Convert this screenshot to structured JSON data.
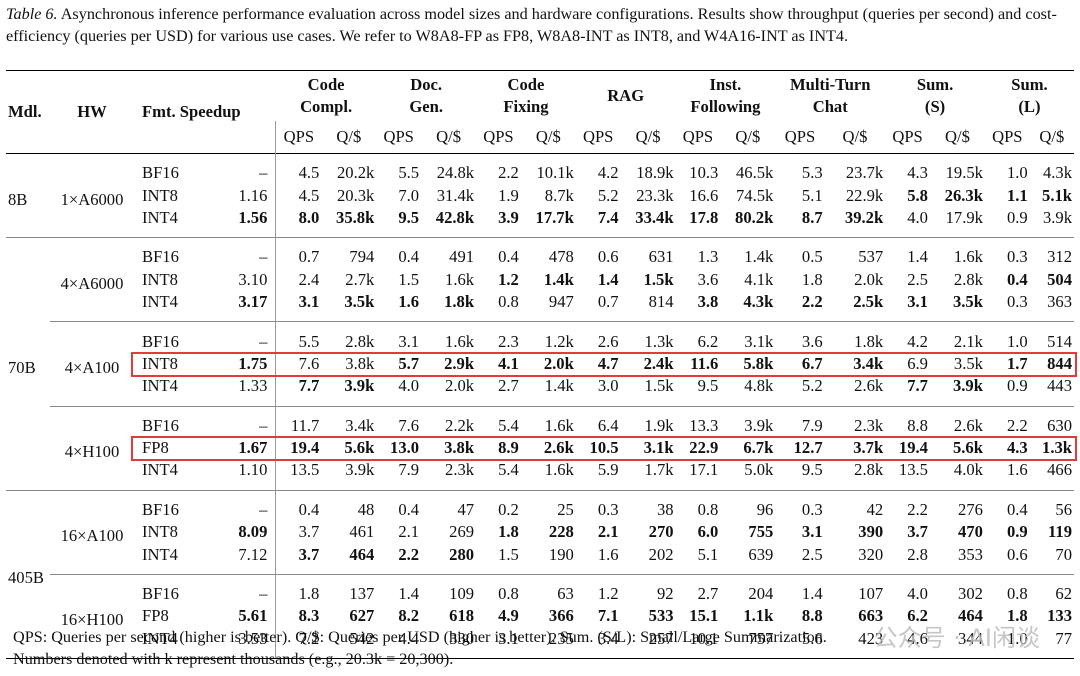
{
  "caption": {
    "label": "Table 6.",
    "text": "Asynchronous inference performance evaluation across model sizes and hardware configurations. Results show throughput (queries per second) and cost-efficiency (queries per USD) for various use cases. We refer to W8A8-FP as FP8, W8A8-INT as INT8, and W4A16-INT as INT4."
  },
  "header": {
    "mdl": "Mdl.",
    "hw": "HW",
    "fmt_speedup": "Fmt. Speedup",
    "groups": [
      "Code Compl.",
      "Doc. Gen.",
      "Code Fixing",
      "RAG",
      "Inst. Following",
      "Multi-Turn Chat",
      "Sum. (S)",
      "Sum. (L)"
    ],
    "groups_l1": [
      "Code",
      "Doc.",
      "Code",
      "RAG",
      "Inst.",
      "Multi-Turn",
      "Sum.",
      "Sum."
    ],
    "groups_l2": [
      "Compl.",
      "Gen.",
      "Fixing",
      "",
      "Following",
      "Chat",
      "(S)",
      "(L)"
    ],
    "qps": "QPS",
    "qpd": "Q/$"
  },
  "groups": [
    {
      "model": "8B",
      "hw": "1×A6000",
      "rows": [
        {
          "fmt": "BF16",
          "speedup": "–",
          "v": [
            "4.5",
            "20.2k",
            "5.5",
            "24.8k",
            "2.2",
            "10.1k",
            "4.2",
            "18.9k",
            "10.3",
            "46.5k",
            "5.3",
            "23.7k",
            "4.3",
            "19.5k",
            "1.0",
            "4.3k"
          ],
          "bold": []
        },
        {
          "fmt": "INT8",
          "speedup": "1.16",
          "v": [
            "4.5",
            "20.3k",
            "7.0",
            "31.4k",
            "1.9",
            "8.7k",
            "5.2",
            "23.3k",
            "16.6",
            "74.5k",
            "5.1",
            "22.9k",
            "5.8",
            "26.3k",
            "1.1",
            "5.1k"
          ],
          "bold": [
            12,
            13,
            14,
            15
          ]
        },
        {
          "fmt": "INT4",
          "speedup": "1.56",
          "v": [
            "8.0",
            "35.8k",
            "9.5",
            "42.8k",
            "3.9",
            "17.7k",
            "7.4",
            "33.4k",
            "17.8",
            "80.2k",
            "8.7",
            "39.2k",
            "4.0",
            "17.9k",
            "0.9",
            "3.9k"
          ],
          "bold": [
            "s",
            0,
            1,
            2,
            3,
            4,
            5,
            6,
            7,
            8,
            9,
            10,
            11
          ]
        }
      ]
    },
    {
      "model": "70B",
      "hw": "4×A6000",
      "rows": [
        {
          "fmt": "BF16",
          "speedup": "–",
          "v": [
            "0.7",
            "794",
            "0.4",
            "491",
            "0.4",
            "478",
            "0.6",
            "631",
            "1.3",
            "1.4k",
            "0.5",
            "537",
            "1.4",
            "1.6k",
            "0.3",
            "312"
          ],
          "bold": []
        },
        {
          "fmt": "INT8",
          "speedup": "3.10",
          "v": [
            "2.4",
            "2.7k",
            "1.5",
            "1.6k",
            "1.2",
            "1.4k",
            "1.4",
            "1.5k",
            "3.6",
            "4.1k",
            "1.8",
            "2.0k",
            "2.5",
            "2.8k",
            "0.4",
            "504"
          ],
          "bold": [
            4,
            5,
            6,
            7,
            14,
            15
          ]
        },
        {
          "fmt": "INT4",
          "speedup": "3.17",
          "v": [
            "3.1",
            "3.5k",
            "1.6",
            "1.8k",
            "0.8",
            "947",
            "0.7",
            "814",
            "3.8",
            "4.3k",
            "2.2",
            "2.5k",
            "3.1",
            "3.5k",
            "0.3",
            "363"
          ],
          "bold": [
            "s",
            0,
            1,
            2,
            3,
            8,
            9,
            10,
            11,
            12,
            13
          ]
        }
      ]
    },
    {
      "model": "70B",
      "hw": "4×A100",
      "rows": [
        {
          "fmt": "BF16",
          "speedup": "–",
          "v": [
            "5.5",
            "2.8k",
            "3.1",
            "1.6k",
            "2.3",
            "1.2k",
            "2.6",
            "1.3k",
            "6.2",
            "3.1k",
            "3.6",
            "1.8k",
            "4.2",
            "2.1k",
            "1.0",
            "514"
          ],
          "bold": []
        },
        {
          "fmt": "INT8",
          "speedup": "1.75",
          "v": [
            "7.6",
            "3.8k",
            "5.7",
            "2.9k",
            "4.1",
            "2.0k",
            "4.7",
            "2.4k",
            "11.6",
            "5.8k",
            "6.7",
            "3.4k",
            "6.9",
            "3.5k",
            "1.7",
            "844"
          ],
          "bold": [
            "s",
            2,
            3,
            4,
            5,
            6,
            7,
            8,
            9,
            10,
            11,
            14,
            15
          ]
        },
        {
          "fmt": "INT4",
          "speedup": "1.33",
          "v": [
            "7.7",
            "3.9k",
            "4.0",
            "2.0k",
            "2.7",
            "1.4k",
            "3.0",
            "1.5k",
            "9.5",
            "4.8k",
            "5.2",
            "2.6k",
            "7.7",
            "3.9k",
            "0.9",
            "443"
          ],
          "bold": [
            0,
            1,
            12,
            13
          ]
        }
      ]
    },
    {
      "model": "70B",
      "hw": "4×H100",
      "rows": [
        {
          "fmt": "BF16",
          "speedup": "–",
          "v": [
            "11.7",
            "3.4k",
            "7.6",
            "2.2k",
            "5.4",
            "1.6k",
            "6.4",
            "1.9k",
            "13.3",
            "3.9k",
            "7.9",
            "2.3k",
            "8.8",
            "2.6k",
            "2.2",
            "630"
          ],
          "bold": []
        },
        {
          "fmt": "FP8",
          "speedup": "1.67",
          "v": [
            "19.4",
            "5.6k",
            "13.0",
            "3.8k",
            "8.9",
            "2.6k",
            "10.5",
            "3.1k",
            "22.9",
            "6.7k",
            "12.7",
            "3.7k",
            "19.4",
            "5.6k",
            "4.3",
            "1.3k"
          ],
          "bold": [
            "s",
            0,
            1,
            2,
            3,
            4,
            5,
            6,
            7,
            8,
            9,
            10,
            11,
            12,
            13,
            14,
            15
          ]
        },
        {
          "fmt": "INT4",
          "speedup": "1.10",
          "v": [
            "13.5",
            "3.9k",
            "7.9",
            "2.3k",
            "5.4",
            "1.6k",
            "5.9",
            "1.7k",
            "17.1",
            "5.0k",
            "9.5",
            "2.8k",
            "13.5",
            "4.0k",
            "1.6",
            "466"
          ],
          "bold": []
        }
      ]
    },
    {
      "model": "405B",
      "hw": "16×A100",
      "rows": [
        {
          "fmt": "BF16",
          "speedup": "–",
          "v": [
            "0.4",
            "48",
            "0.4",
            "47",
            "0.2",
            "25",
            "0.3",
            "38",
            "0.8",
            "96",
            "0.3",
            "42",
            "2.2",
            "276",
            "0.4",
            "56"
          ],
          "bold": []
        },
        {
          "fmt": "INT8",
          "speedup": "8.09",
          "v": [
            "3.7",
            "461",
            "2.1",
            "269",
            "1.8",
            "228",
            "2.1",
            "270",
            "6.0",
            "755",
            "3.1",
            "390",
            "3.7",
            "470",
            "0.9",
            "119"
          ],
          "bold": [
            "s",
            4,
            5,
            6,
            7,
            8,
            9,
            10,
            11,
            12,
            13,
            14,
            15
          ]
        },
        {
          "fmt": "INT4",
          "speedup": "7.12",
          "v": [
            "3.7",
            "464",
            "2.2",
            "280",
            "1.5",
            "190",
            "1.6",
            "202",
            "5.1",
            "639",
            "2.5",
            "320",
            "2.8",
            "353",
            "0.6",
            "70"
          ],
          "bold": [
            0,
            1,
            2,
            3
          ]
        }
      ]
    },
    {
      "model": "405B",
      "hw": "16×H100",
      "rows": [
        {
          "fmt": "BF16",
          "speedup": "–",
          "v": [
            "1.8",
            "137",
            "1.4",
            "109",
            "0.8",
            "63",
            "1.2",
            "92",
            "2.7",
            "204",
            "1.4",
            "107",
            "4.0",
            "302",
            "0.8",
            "62"
          ],
          "bold": []
        },
        {
          "fmt": "FP8",
          "speedup": "5.61",
          "v": [
            "8.3",
            "627",
            "8.2",
            "618",
            "4.9",
            "366",
            "7.1",
            "533",
            "15.1",
            "1.1k",
            "8.8",
            "663",
            "6.2",
            "464",
            "1.8",
            "133"
          ],
          "bold": [
            "s",
            0,
            1,
            2,
            3,
            4,
            5,
            6,
            7,
            8,
            9,
            10,
            11,
            12,
            13,
            14,
            15
          ]
        },
        {
          "fmt": "INT4",
          "speedup": "3.53",
          "v": [
            "7.2",
            "542",
            "4.4",
            "330",
            "3.1",
            "235",
            "3.4",
            "257",
            "10.1",
            "757",
            "5.6",
            "423",
            "4.6",
            "344",
            "1.0",
            "77"
          ],
          "bold": []
        }
      ]
    }
  ],
  "notes": {
    "line1": "QPS: Queries per second (higher is better). Q/$: Queries per USD (higher is better). Sum. (S/L): Small/Large Summarization.",
    "line2": "Numbers denoted with k represent thousands (e.g., 20.3k = 20,300)."
  },
  "watermark": "公众号 · AI闲谈",
  "colors": {
    "highlight_box": "#e23b3b"
  }
}
